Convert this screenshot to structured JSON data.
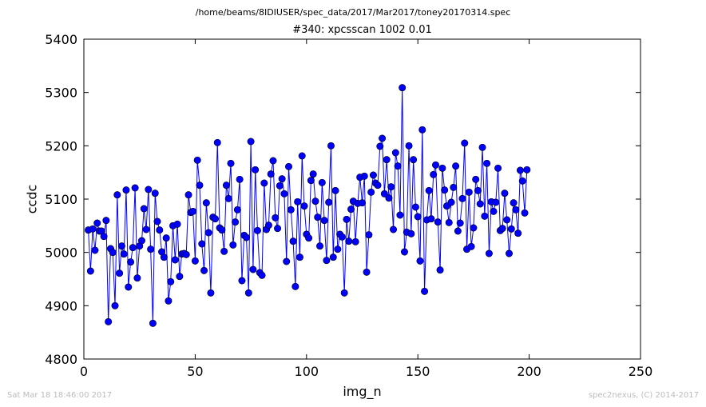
{
  "chart_data": {
    "type": "line",
    "suptitle": "/home/beams/8IDIUSER/spec_data/2017/Mar2017/toney20170314.spec",
    "title": "#340: xpcsscan 1002 0.01",
    "xlabel": "img_n",
    "ylabel": "ccdc",
    "xlim": [
      0,
      250
    ],
    "ylim": [
      4800,
      5400
    ],
    "xticks": [
      0,
      50,
      100,
      150,
      200,
      250
    ],
    "yticks": [
      4800,
      4900,
      5000,
      5100,
      5200,
      5300,
      5400
    ],
    "grid": false,
    "line_color": "#0000ff",
    "marker_color": "#0000ff",
    "series": [
      {
        "x_start": 2,
        "x_step": 1,
        "values": [
          5042,
          4965,
          5044,
          5004,
          5055,
          5040,
          5040,
          5030,
          5060,
          4870,
          5007,
          5000,
          4900,
          5108,
          4961,
          5012,
          4997,
          5117,
          4935,
          4982,
          5009,
          5121,
          4952,
          5012,
          5022,
          5082,
          5043,
          5118,
          5006,
          4867,
          5111,
          5058,
          5042,
          5001,
          4991,
          5027,
          4909,
          4945,
          5050,
          4986,
          5053,
          4955,
          4997,
          4998,
          4996,
          5108,
          5075,
          5077,
          4984,
          5173,
          5126,
          5016,
          4966,
          5093,
          5037,
          4924,
          5066,
          5063,
          5206,
          5046,
          5042,
          5002,
          5126,
          5101,
          5167,
          5014,
          5057,
          5080,
          5137,
          4947,
          5032,
          5028,
          4924,
          5208,
          4968,
          5155,
          5041,
          4962,
          4957,
          5130,
          5043,
          5051,
          5147,
          5172,
          5065,
          5045,
          5125,
          5138,
          5110,
          4983,
          5161,
          5080,
          5021,
          4936,
          5095,
          4991,
          5181,
          5087,
          5034,
          5027,
          5135,
          5147,
          5096,
          5066,
          5012,
          5131,
          5060,
          4985,
          5094,
          5200,
          4991,
          5116,
          5006,
          5034,
          5029,
          4924,
          5062,
          5021,
          5081,
          5096,
          5020,
          5092,
          5141,
          5093,
          5143,
          4963,
          5033,
          5113,
          5145,
          5130,
          5126,
          5199,
          5214,
          5110,
          5174,
          5102,
          5123,
          5043,
          5187,
          5162,
          5070,
          5309,
          5001,
          5038,
          5200,
          5035,
          5174,
          5085,
          5067,
          4984,
          5230,
          4927,
          5061,
          5116,
          5063,
          5146,
          5164,
          5057,
          4967,
          5158,
          5117,
          5087,
          5056,
          5094,
          5122,
          5162,
          5040,
          5055,
          5101,
          5205,
          5006,
          5113,
          5011,
          5046,
          5137,
          5116,
          5091,
          5197,
          5068,
          5167,
          4998,
          5095,
          5077,
          5094,
          5158,
          5041,
          5045,
          5111,
          5061,
          4998,
          5044,
          5093,
          5080,
          5036,
          5154,
          5134,
          5074,
          5155
        ]
      }
    ]
  },
  "footer": {
    "left": "Sat Mar 18 18:46:00 2017",
    "right": "spec2nexus, (C) 2014-2017"
  }
}
